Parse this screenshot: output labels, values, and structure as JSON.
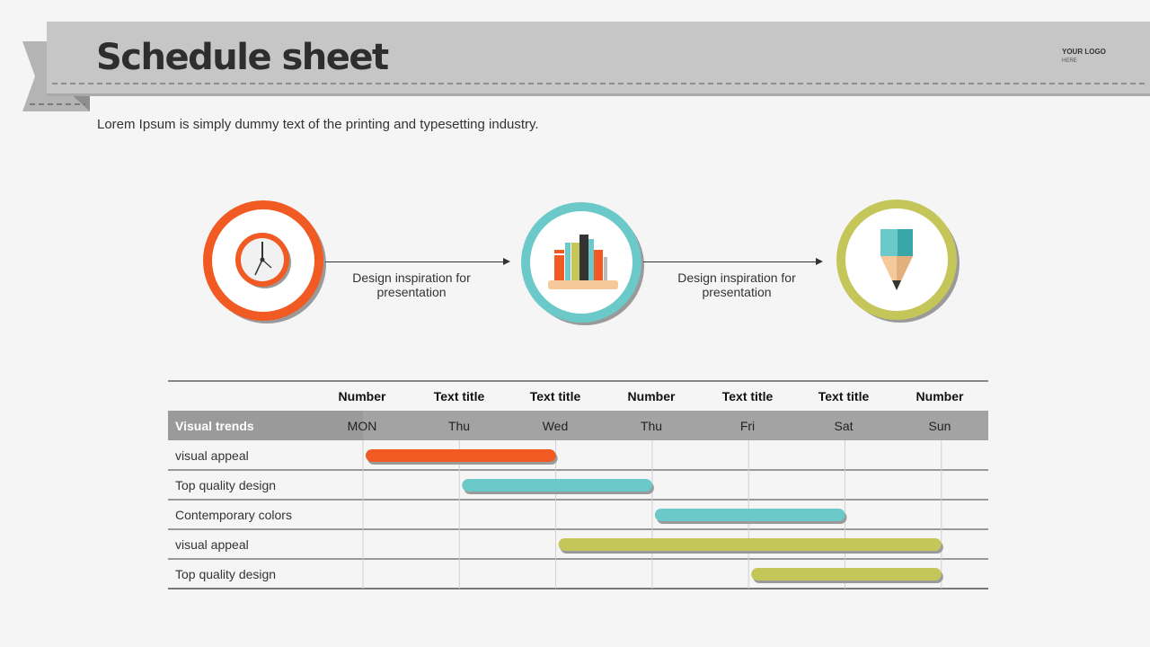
{
  "header": {
    "title": "Schedule sheet",
    "logo_line1": "YOUR LOGO",
    "logo_line2": "HERE"
  },
  "subtitle": "Lorem Ipsum is simply dummy text of the printing and typesetting industry.",
  "flow": {
    "steps": [
      {
        "icon": "clock-icon",
        "ring_color": "#f15a22"
      },
      {
        "icon": "books-icon",
        "ring_color": "#6cc9c9"
      },
      {
        "icon": "pencil-icon",
        "ring_color": "#c5c65a"
      }
    ],
    "labels": [
      {
        "line1": "Design inspiration  for",
        "line2": "presentation"
      },
      {
        "line1": "Design inspiration  for",
        "line2": "presentation"
      }
    ]
  },
  "table": {
    "header_row": [
      "Number",
      "Text title",
      "Text title",
      "Number",
      "Text title",
      "Text title",
      "Number"
    ],
    "first_col_header": "Visual trends",
    "days": [
      "MON",
      "Thu",
      "Wed",
      "Thu",
      "Fri",
      "Sat",
      "Sun"
    ],
    "rows": [
      {
        "label": "visual appeal"
      },
      {
        "label": "Top quality design"
      },
      {
        "label": "Contemporary colors"
      },
      {
        "label": "visual appeal"
      },
      {
        "label": "Top quality design"
      }
    ]
  },
  "chart_data": {
    "type": "gantt",
    "categories": [
      "MON",
      "Thu",
      "Wed",
      "Thu",
      "Fri",
      "Sat",
      "Sun"
    ],
    "tasks": [
      {
        "label": "visual appeal",
        "start": 0,
        "end": 2,
        "color": "#f15a22"
      },
      {
        "label": "Top quality design",
        "start": 1,
        "end": 3,
        "color": "#6cc9c9"
      },
      {
        "label": "Contemporary colors",
        "start": 3,
        "end": 5,
        "color": "#6cc9c9"
      },
      {
        "label": "visual appeal",
        "start": 2,
        "end": 6,
        "color": "#c5c65a"
      },
      {
        "label": "Top quality design",
        "start": 4,
        "end": 6,
        "color": "#c5c65a"
      }
    ]
  }
}
